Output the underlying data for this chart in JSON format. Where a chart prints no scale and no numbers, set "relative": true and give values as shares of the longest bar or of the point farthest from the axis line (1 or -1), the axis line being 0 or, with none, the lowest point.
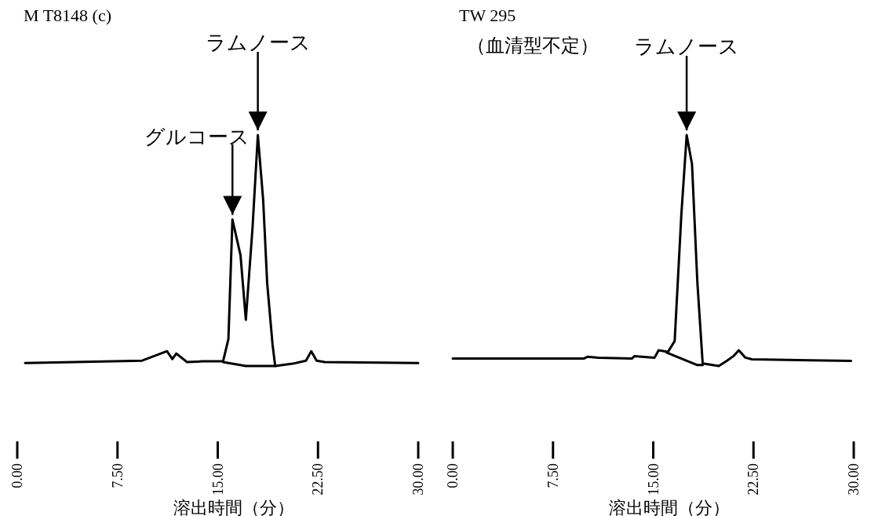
{
  "chart_data": [
    {
      "type": "line",
      "title": "M T8148 (c)",
      "xlabel": "溶出時間（分）",
      "relative": true,
      "xlim": [
        0,
        30
      ],
      "xticks": [
        {
          "value": 0,
          "label": "0.00"
        },
        {
          "value": 7.5,
          "label": "7.50"
        },
        {
          "value": 15,
          "label": "15.00"
        },
        {
          "value": 22.5,
          "label": "22.50"
        },
        {
          "value": 30,
          "label": "30.00"
        }
      ],
      "annotations": [
        {
          "text": "ラムノース",
          "x": 18.0,
          "y": 1
        },
        {
          "text": "グルコース",
          "x": 16.1,
          "y": 0.634
        }
      ],
      "series": [
        {
          "color": "#000000",
          "x": [
            0.59,
            9.34,
            11.2,
            11.6,
            11.9,
            12.7,
            13.9,
            15.4,
            15.8,
            16.1,
            16.7,
            17.1,
            17.6,
            18.0,
            18.4,
            18.7,
            19.1,
            19.3,
            20.6,
            21.6,
            22.0,
            22.4,
            23.0,
            30.0
          ],
          "values": [
            0.013,
            0.023,
            0.064,
            0.03,
            0.054,
            0.017,
            0.02,
            0.02,
            0.117,
            0.634,
            0.48,
            0.2,
            0.597,
            1,
            0.718,
            0.359,
            0.094,
            0,
            0.01,
            0.023,
            0.064,
            0.023,
            0.017,
            0.013
          ]
        },
        {
          "color": "#000000",
          "x": [
            15.4,
            17.1,
            18.7,
            19.3
          ],
          "values": [
            0.017,
            0,
            0,
            0
          ]
        }
      ]
    },
    {
      "type": "line",
      "title": "TW 295",
      "subtitle": "（血清型不定）",
      "xlabel": "溶出時間（分）",
      "relative": true,
      "xlim": [
        0,
        30
      ],
      "xticks": [
        {
          "value": 0,
          "label": "0.00"
        },
        {
          "value": 7.5,
          "label": "7.50"
        },
        {
          "value": 15,
          "label": "15.00"
        },
        {
          "value": 22.5,
          "label": "22.50"
        },
        {
          "value": 30,
          "label": "30.00"
        }
      ],
      "annotations": [
        {
          "text": "ラムノース",
          "x": 17.5,
          "y": 1
        }
      ],
      "series": [
        {
          "color": "#000000",
          "x": [
            0.0,
            9.8,
            10.1,
            10.9,
            13.4,
            13.6,
            15.1,
            15.4,
            16.1,
            16.6,
            17.1,
            17.5,
            17.9,
            18.3,
            18.7,
            19.9,
            20.5,
            21.0,
            21.4,
            21.9,
            22.4,
            29.8
          ],
          "values": [
            0.032,
            0.032,
            0.04,
            0.036,
            0.032,
            0.043,
            0.036,
            0.068,
            0.061,
            0.108,
            0.655,
            1,
            0.874,
            0.363,
            0.011,
            0,
            0.022,
            0.043,
            0.068,
            0.036,
            0.029,
            0.022
          ]
        },
        {
          "color": "#000000",
          "x": [
            16.0,
            18.3,
            18.7
          ],
          "values": [
            0.058,
            0.004,
            0.004
          ]
        }
      ]
    }
  ]
}
